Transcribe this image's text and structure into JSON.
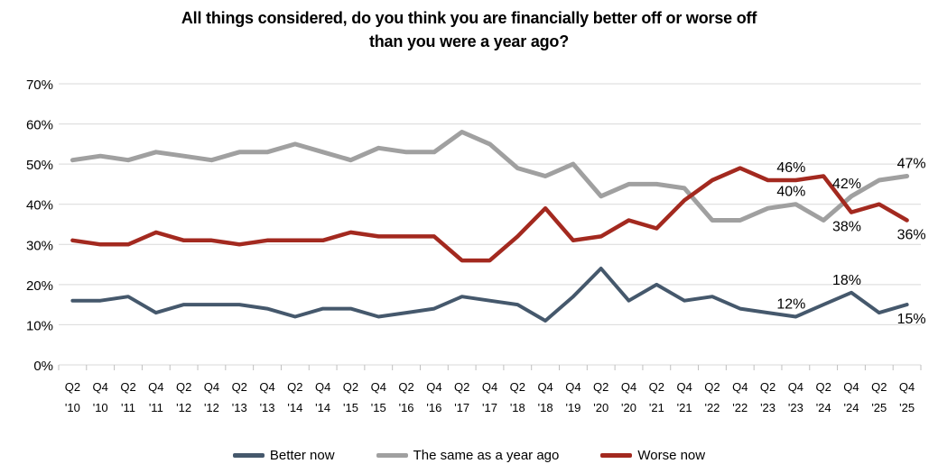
{
  "title": {
    "line1": "All things considered, do you think you are financially better off or worse off",
    "line2": "than you were a year ago?"
  },
  "colors": {
    "better_now": "#45586C",
    "same_as_year_ago": "#A0A0A0",
    "worse_now": "#A3291F",
    "gridline": "#D9D9D9",
    "tick": "#BFBFBF",
    "axis_text": "#000000"
  },
  "chart_data": {
    "type": "line",
    "title": "All things considered, do you think you are financially better off or worse off than you were a year ago?",
    "categories": [
      "Q2 '10",
      "Q4 '10",
      "Q2 '11",
      "Q4 '11",
      "Q2 '12",
      "Q4 '12",
      "Q2 '13",
      "Q4 '13",
      "Q2 '14",
      "Q4 '14",
      "Q2 '15",
      "Q4 '15",
      "Q2 '16",
      "Q4 '16",
      "Q2 '17",
      "Q4 '17",
      "Q2 '18",
      "Q4 '18",
      "Q4 '19",
      "Q2 '20",
      "Q4 '20",
      "Q2 '21",
      "Q4 '21",
      "Q2 '22",
      "Q4 '22",
      "Q2 '23",
      "Q4 '23",
      "Q2 '24",
      "Q4 '24",
      "Q2 '25",
      "Q4 '25"
    ],
    "series": [
      {
        "name": "Better now",
        "color": "#45586C",
        "values": [
          16,
          16,
          17,
          13,
          15,
          15,
          15,
          14,
          12,
          14,
          14,
          12,
          13,
          14,
          17,
          16,
          15,
          11,
          17,
          24,
          16,
          20,
          16,
          17,
          14,
          13,
          12,
          15,
          18,
          13,
          15
        ]
      },
      {
        "name": "The same as a year ago",
        "color": "#A0A0A0",
        "values": [
          51,
          52,
          51,
          53,
          52,
          51,
          53,
          53,
          55,
          53,
          51,
          54,
          53,
          53,
          58,
          55,
          49,
          47,
          50,
          42,
          45,
          45,
          44,
          36,
          36,
          39,
          40,
          36,
          42,
          46,
          47
        ]
      },
      {
        "name": "Worse now",
        "color": "#A3291F",
        "values": [
          31,
          30,
          30,
          33,
          31,
          31,
          30,
          31,
          31,
          31,
          33,
          32,
          32,
          32,
          26,
          26,
          32,
          39,
          31,
          32,
          36,
          34,
          41,
          46,
          49,
          46,
          46,
          47,
          38,
          40,
          36
        ]
      }
    ],
    "ylabel": "",
    "xlabel": "",
    "ylim": [
      0,
      70
    ],
    "ytick_step": 10,
    "ytick_labels": [
      "0%",
      "10%",
      "20%",
      "30%",
      "40%",
      "50%",
      "60%",
      "70%"
    ],
    "grid": true,
    "legend_position": "bottom",
    "point_labels": [
      {
        "series": "Worse now",
        "category": "Q4 '23",
        "label": "46%",
        "position": "above"
      },
      {
        "series": "The same as a year ago",
        "category": "Q4 '23",
        "label": "40%",
        "position": "above"
      },
      {
        "series": "Better now",
        "category": "Q4 '23",
        "label": "12%",
        "position": "above"
      },
      {
        "series": "The same as a year ago",
        "category": "Q4 '24",
        "label": "42%",
        "position": "above"
      },
      {
        "series": "Worse now",
        "category": "Q4 '24",
        "label": "38%",
        "position": "below"
      },
      {
        "series": "Better now",
        "category": "Q4 '24",
        "label": "18%",
        "position": "above"
      },
      {
        "series": "The same as a year ago",
        "category": "Q4 '25",
        "label": "47%",
        "position": "above"
      },
      {
        "series": "Worse now",
        "category": "Q4 '25",
        "label": "36%",
        "position": "below"
      },
      {
        "series": "Better now",
        "category": "Q4 '25",
        "label": "15%",
        "position": "below"
      }
    ]
  },
  "legend": {
    "items": [
      {
        "label": "Better now"
      },
      {
        "label": "The same as a year ago"
      },
      {
        "label": "Worse now"
      }
    ]
  }
}
